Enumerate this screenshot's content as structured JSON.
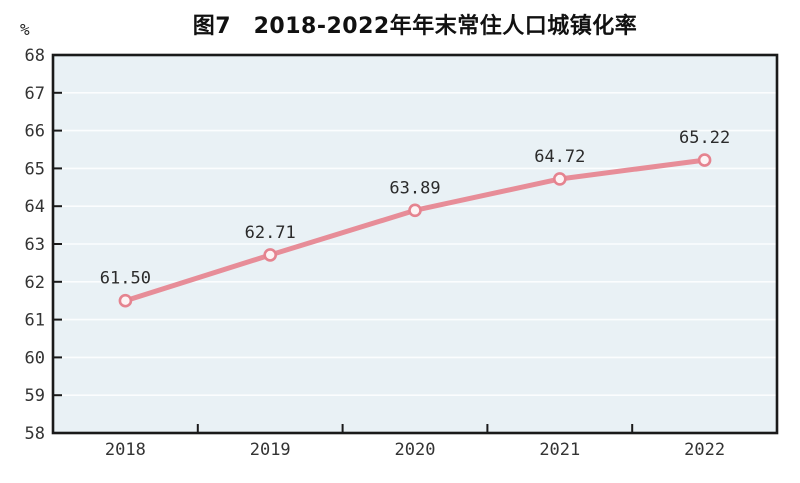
{
  "chart": {
    "title": "图7　2018-2022年年末常住人口城镇化率",
    "ylabel_unit": "%"
  },
  "chart_data": {
    "type": "line",
    "title": "图7　2018-2022年年末常住人口城镇化率",
    "categories": [
      "2018",
      "2019",
      "2020",
      "2021",
      "2022"
    ],
    "values": [
      61.5,
      62.71,
      63.89,
      64.72,
      65.22
    ],
    "data_labels": [
      "61.50",
      "62.71",
      "63.89",
      "64.72",
      "65.22"
    ],
    "ylabel": "%",
    "ylim": [
      58,
      68
    ],
    "yticks": [
      58,
      59,
      60,
      61,
      62,
      63,
      64,
      65,
      66,
      67,
      68
    ],
    "grid": true,
    "legend": "none",
    "colors": {
      "line": "#e78d98",
      "marker_fill": "#fdf3f4",
      "marker_stroke": "#e5838f",
      "plot_bg": "#e9f1f5",
      "gridline": "#fbfdfe",
      "axis": "#1a1a1a",
      "label_text": "#333333",
      "title_text": "#111111"
    }
  }
}
